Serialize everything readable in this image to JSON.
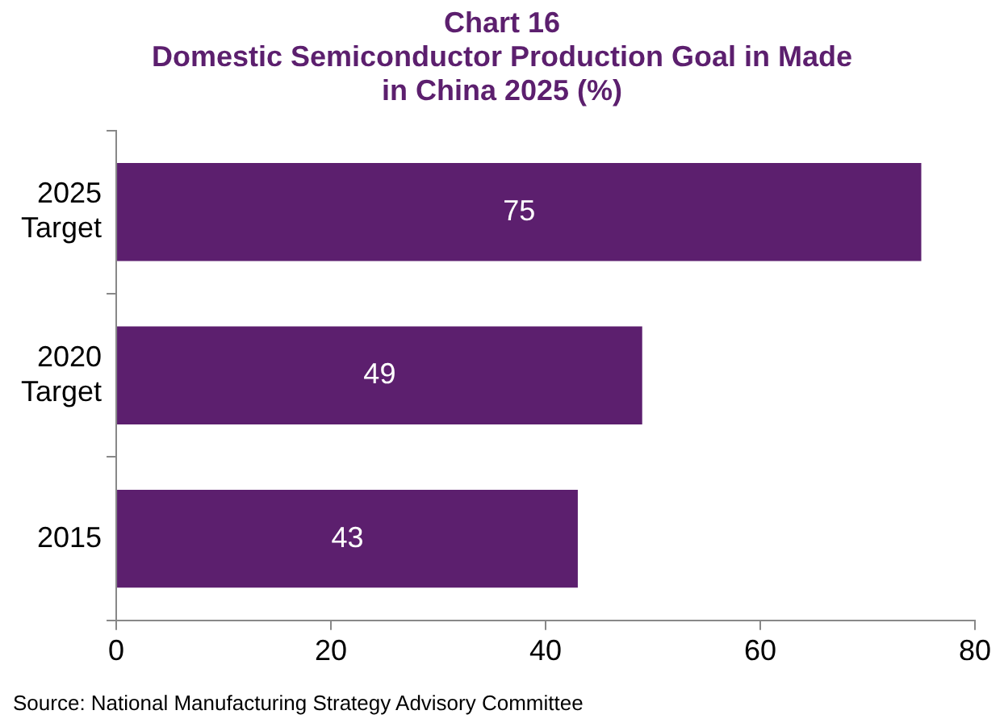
{
  "chart_data": {
    "type": "bar",
    "orientation": "horizontal",
    "title": "Chart 16",
    "subtitle": "Domestic Semiconductor Production Goal in Made in China 2025 (%)",
    "categories": [
      "2025 Target",
      "2020 Target",
      "2015"
    ],
    "values": [
      75,
      49,
      43
    ],
    "color": "#5c1f6e",
    "xlim": [
      0,
      80
    ],
    "xticks": [
      0,
      20,
      40,
      60,
      80
    ],
    "grid": false,
    "legend": false,
    "data_labels": true,
    "annotations": [
      "Source: National Manufacturing Strategy Advisory Committee"
    ]
  }
}
